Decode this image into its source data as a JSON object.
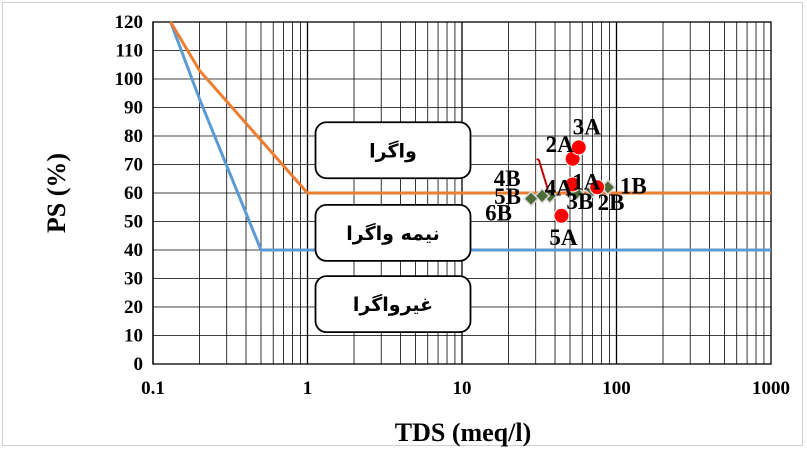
{
  "chart_data": {
    "type": "scatter",
    "xlabel": "TDS (meq/l)",
    "ylabel": "PS (%)",
    "x_scale": "log",
    "xlim": [
      0.1,
      1000
    ],
    "ylim": [
      0,
      120
    ],
    "x_ticks": [
      "0.1",
      "1",
      "10",
      "100",
      "1000"
    ],
    "y_ticks": [
      "0",
      "10",
      "20",
      "30",
      "40",
      "50",
      "60",
      "70",
      "80",
      "90",
      "100",
      "110",
      "120"
    ],
    "grid": true,
    "colors": {
      "upper_line": "#ED7D31",
      "lower_line": "#5B9BD5",
      "group_A": "#FF0000",
      "group_B": "#4E6B3A"
    },
    "boundary_lines": [
      {
        "points": [
          [
            0.13,
            120
          ],
          [
            0.2,
            103
          ],
          [
            1,
            60
          ],
          [
            1000,
            60
          ]
        ]
      },
      {
        "points": [
          [
            0.13,
            120
          ],
          [
            0.2,
            93
          ],
          [
            0.5,
            40
          ],
          [
            1000,
            40
          ]
        ]
      }
    ],
    "regions": [
      {
        "label": "واگرا",
        "x": 0.3,
        "y": 75
      },
      {
        "label": "نیمه واگرا",
        "x": 0.3,
        "y": 46
      },
      {
        "label": "غیرواگرا",
        "x": 0.3,
        "y": 21
      }
    ],
    "points": [
      {
        "label": "1A",
        "x": 75,
        "y": 62,
        "group": "A"
      },
      {
        "label": "2A",
        "x": 52,
        "y": 72,
        "group": "A"
      },
      {
        "label": "3A",
        "x": 57,
        "y": 76,
        "group": "A"
      },
      {
        "label": "4A",
        "x": 52,
        "y": 63,
        "group": "A"
      },
      {
        "label": "5A",
        "x": 44,
        "y": 52,
        "group": "A"
      },
      {
        "label": "1B",
        "x": 88,
        "y": 62,
        "group": "B"
      },
      {
        "label": "2B",
        "x": 70,
        "y": 61,
        "group": "B"
      },
      {
        "label": "3B",
        "x": 55,
        "y": 60,
        "group": "B"
      },
      {
        "label": "4B",
        "x": 37,
        "y": 59,
        "group": "B"
      },
      {
        "label": "5B",
        "x": 33,
        "y": 59,
        "group": "B"
      },
      {
        "label": "6B",
        "x": 28,
        "y": 58,
        "group": "B"
      }
    ]
  }
}
